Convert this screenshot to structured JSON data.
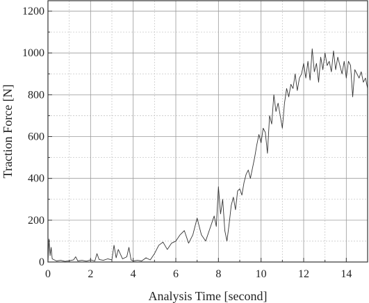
{
  "chart_data": {
    "type": "line",
    "title": "",
    "xlabel": "Analysis Time [second]",
    "ylabel": "Traction Force [N]",
    "xlim": [
      0,
      15
    ],
    "ylim": [
      0,
      1250
    ],
    "xticks": [
      0,
      2,
      4,
      6,
      8,
      10,
      12,
      14
    ],
    "yticks": [
      0,
      200,
      400,
      600,
      800,
      1000,
      1200
    ],
    "x_tick_labels": [
      "0",
      "2",
      "4",
      "6",
      "8",
      "10",
      "12",
      "14"
    ],
    "y_tick_labels": [
      "0",
      "200",
      "400",
      "600",
      "800",
      "1000",
      "1200"
    ],
    "grid": true,
    "minor_grid": true,
    "legend": "none",
    "line_color": "#333333",
    "series": [
      {
        "x": [
          0,
          0.05,
          0.1,
          0.15,
          0.2,
          0.3,
          0.4,
          0.6,
          0.8,
          1.0,
          1.2,
          1.3,
          1.4,
          1.6,
          1.8,
          2.0,
          2.2,
          2.3,
          2.4,
          2.6,
          2.8,
          3.0,
          3.1,
          3.2,
          3.3,
          3.5,
          3.7,
          3.8,
          3.9,
          4.0,
          4.2,
          4.4,
          4.6,
          4.8,
          5.0,
          5.2,
          5.4,
          5.6,
          5.8,
          6.0,
          6.2,
          6.4,
          6.6,
          6.8,
          7.0,
          7.2,
          7.4,
          7.6,
          7.8,
          7.9,
          8.0,
          8.1,
          8.2,
          8.3,
          8.4,
          8.5,
          8.6,
          8.7,
          8.8,
          8.9,
          9.0,
          9.1,
          9.2,
          9.3,
          9.4,
          9.5,
          9.6,
          9.7,
          9.8,
          9.9,
          10.0,
          10.1,
          10.2,
          10.3,
          10.4,
          10.5,
          10.6,
          10.7,
          10.8,
          10.9,
          11.0,
          11.1,
          11.2,
          11.3,
          11.4,
          11.5,
          11.6,
          11.7,
          11.8,
          11.9,
          12.0,
          12.1,
          12.2,
          12.3,
          12.4,
          12.5,
          12.6,
          12.7,
          12.8,
          12.9,
          13.0,
          13.1,
          13.2,
          13.3,
          13.4,
          13.5,
          13.6,
          13.7,
          13.8,
          13.9,
          14.0,
          14.1,
          14.2,
          14.3,
          14.4,
          14.5,
          14.6,
          14.7,
          14.8,
          14.9,
          15.0
        ],
        "y": [
          0,
          110,
          30,
          70,
          15,
          10,
          5,
          8,
          3,
          6,
          10,
          25,
          5,
          8,
          4,
          10,
          5,
          40,
          12,
          8,
          15,
          10,
          80,
          20,
          60,
          15,
          25,
          70,
          10,
          5,
          8,
          5,
          20,
          10,
          40,
          80,
          95,
          60,
          90,
          100,
          130,
          150,
          90,
          130,
          210,
          130,
          100,
          160,
          220,
          170,
          360,
          230,
          300,
          150,
          100,
          180,
          270,
          310,
          250,
          340,
          350,
          320,
          380,
          420,
          440,
          400,
          450,
          500,
          560,
          610,
          570,
          640,
          620,
          520,
          700,
          660,
          800,
          720,
          760,
          700,
          640,
          760,
          830,
          790,
          850,
          830,
          900,
          820,
          880,
          900,
          950,
          880,
          960,
          870,
          1020,
          910,
          950,
          860,
          980,
          920,
          1000,
          940,
          960,
          910,
          1010,
          920,
          980,
          940,
          900,
          960,
          880,
          960,
          940,
          790,
          920,
          900,
          880,
          910,
          860,
          880,
          830
        ]
      }
    ]
  }
}
